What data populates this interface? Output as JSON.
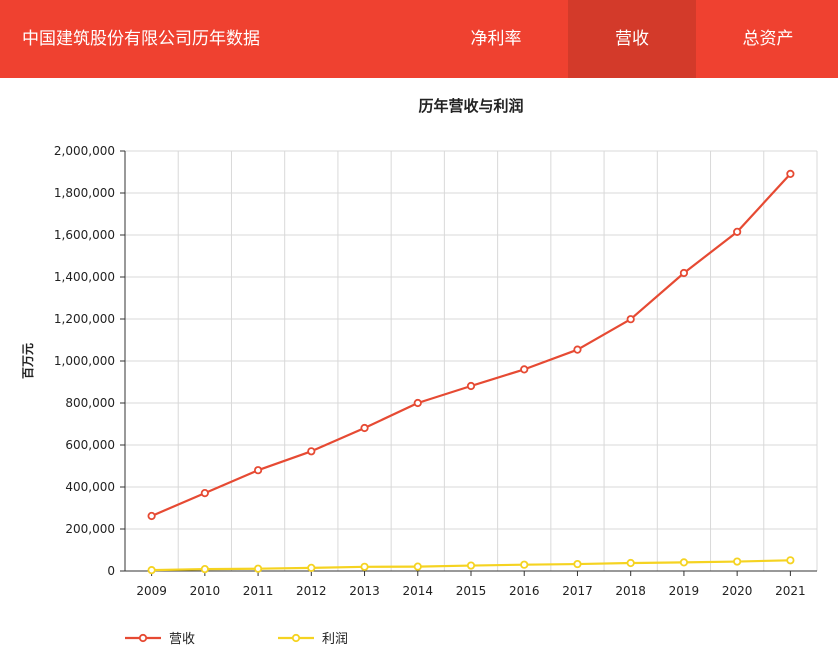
{
  "header": {
    "title": "中国建筑股份有限公司历年数据",
    "tabs": [
      {
        "label": "净利率",
        "active": false
      },
      {
        "label": "营收",
        "active": true
      },
      {
        "label": "总资产",
        "active": false
      }
    ]
  },
  "colors": {
    "brand": "#ef4130",
    "tab_active": "#d33a2a",
    "series_revenue": "#e64a33",
    "series_profit": "#f5d321"
  },
  "chart_data": {
    "type": "line",
    "title": "历年营收与利润",
    "xlabel": "",
    "ylabel": "百万元",
    "ylim": [
      0,
      2000000
    ],
    "yticks": [
      0,
      200000,
      400000,
      600000,
      800000,
      1000000,
      1200000,
      1400000,
      1600000,
      1800000,
      2000000
    ],
    "ytick_labels": [
      "0",
      "200,000",
      "400,000",
      "600,000",
      "800,000",
      "1,000,000",
      "1,200,000",
      "1,400,000",
      "1,600,000",
      "1,800,000",
      "2,000,000"
    ],
    "categories": [
      "2009",
      "2010",
      "2011",
      "2012",
      "2013",
      "2014",
      "2015",
      "2016",
      "2017",
      "2018",
      "2019",
      "2020",
      "2021"
    ],
    "grid": true,
    "legend_position": "bottom-left",
    "series": [
      {
        "name": "营收",
        "color": "#e64a33",
        "values": [
          262000,
          371000,
          480000,
          570000,
          681000,
          800000,
          881000,
          960000,
          1054000,
          1199000,
          1419000,
          1615000,
          1891000
        ]
      },
      {
        "name": "利润",
        "color": "#f5d321",
        "values": [
          4000,
          9000,
          11000,
          15000,
          20000,
          21000,
          26000,
          30000,
          33000,
          38000,
          41000,
          45000,
          51000
        ]
      }
    ]
  }
}
